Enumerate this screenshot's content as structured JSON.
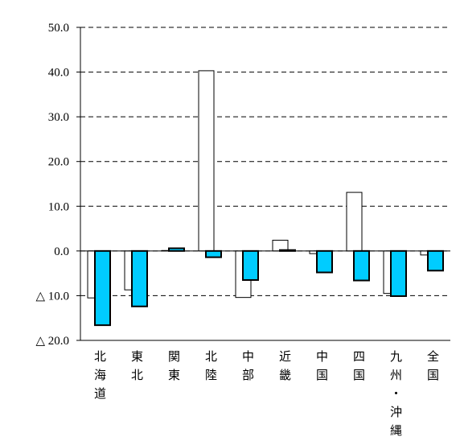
{
  "chart_data": {
    "type": "bar",
    "categories": [
      "北海道",
      "東北",
      "関東",
      "北陸",
      "中部",
      "近畿",
      "中国",
      "四国",
      "九州・沖縄",
      "全国"
    ],
    "series": [
      {
        "color": "#ffffff",
        "values": [
          -10.5,
          -8.7,
          0.1,
          40.3,
          -10.4,
          2.4,
          -0.6,
          13.1,
          -9.5,
          -0.9
        ]
      },
      {
        "color": "#00ccff",
        "values": [
          -16.6,
          -12.4,
          0.6,
          -1.4,
          -6.5,
          0.2,
          -4.8,
          -6.6,
          -10.1,
          -4.4
        ]
      }
    ],
    "ylim": [
      -20,
      50
    ],
    "yticks": [
      {
        "value": -20,
        "label": "△ 20.0"
      },
      {
        "value": -10,
        "label": "△ 10.0"
      },
      {
        "value": 0,
        "label": "0.0"
      },
      {
        "value": 10,
        "label": "10.0"
      },
      {
        "value": 20,
        "label": "20.0"
      },
      {
        "value": 30,
        "label": "30.0"
      },
      {
        "value": 40,
        "label": "40.0"
      },
      {
        "value": 50,
        "label": "50.0"
      }
    ],
    "grid": true
  }
}
